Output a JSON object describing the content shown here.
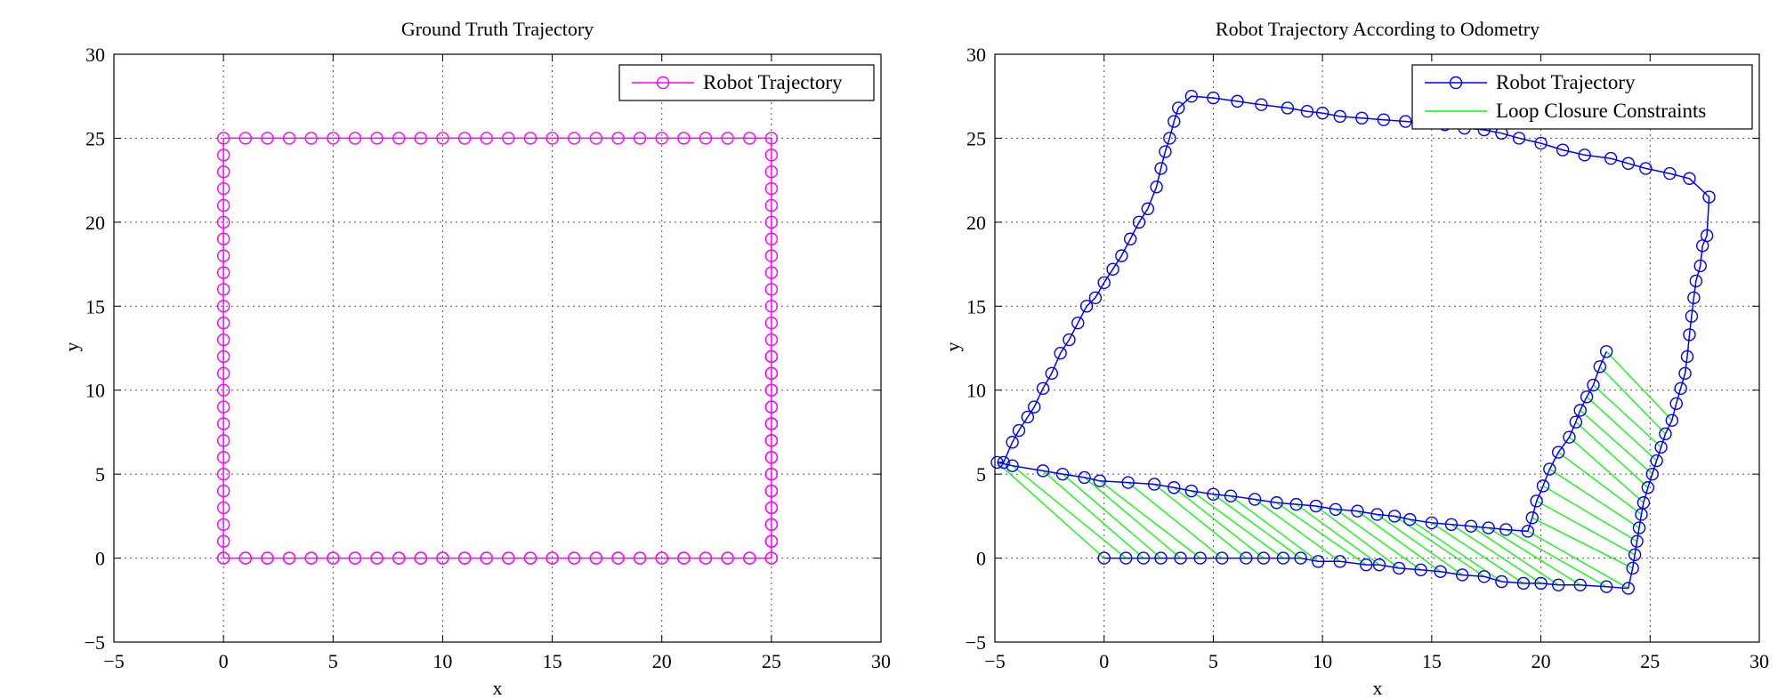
{
  "chart_data": [
    {
      "type": "line",
      "title": "Ground Truth Trajectory",
      "xlabel": "x",
      "ylabel": "y",
      "xlim": [
        -5,
        30
      ],
      "ylim": [
        -5,
        30
      ],
      "xticks": [
        -5,
        0,
        5,
        10,
        15,
        20,
        25,
        30
      ],
      "yticks": [
        -5,
        0,
        5,
        10,
        15,
        20,
        25,
        30
      ],
      "xtick_labels": [
        "−5",
        "0",
        "5",
        "10",
        "15",
        "20",
        "25",
        "30"
      ],
      "ytick_labels": [
        "−5",
        "0",
        "5",
        "10",
        "15",
        "20",
        "25",
        "30"
      ],
      "grid": true,
      "legend_position": "top-right",
      "series": [
        {
          "name": "Robot Trajectory",
          "color": "#ff00ff",
          "marker": "circle",
          "x": [
            0,
            1,
            2,
            3,
            4,
            5,
            6,
            7,
            8,
            9,
            10,
            11,
            12,
            13,
            14,
            15,
            16,
            17,
            18,
            19,
            20,
            21,
            22,
            23,
            24,
            25,
            25,
            25,
            25,
            25,
            25,
            25,
            25,
            25,
            25,
            25,
            25,
            25,
            25,
            25,
            25,
            25,
            25,
            25,
            25,
            25,
            25,
            25,
            25,
            25,
            25,
            24,
            23,
            22,
            21,
            20,
            19,
            18,
            17,
            16,
            15,
            14,
            13,
            12,
            11,
            10,
            9,
            8,
            7,
            6,
            5,
            4,
            3,
            2,
            1,
            0,
            0,
            0,
            0,
            0,
            0,
            0,
            0,
            0,
            0,
            0,
            0,
            0,
            0,
            0,
            0,
            0,
            0,
            0,
            0,
            0,
            0,
            0,
            0,
            0,
            0,
            1,
            2,
            3,
            4,
            5,
            6,
            7,
            8,
            9,
            10,
            11,
            12,
            13,
            14,
            15,
            16,
            17,
            18,
            19,
            20,
            21,
            22,
            23,
            24,
            25,
            25,
            25,
            25,
            25,
            25,
            25,
            25,
            25,
            25,
            25,
            25,
            25
          ],
          "y": [
            0,
            0,
            0,
            0,
            0,
            0,
            0,
            0,
            0,
            0,
            0,
            0,
            0,
            0,
            0,
            0,
            0,
            0,
            0,
            0,
            0,
            0,
            0,
            0,
            0,
            0,
            1,
            2,
            3,
            4,
            5,
            6,
            7,
            8,
            9,
            10,
            11,
            12,
            13,
            14,
            15,
            16,
            17,
            18,
            19,
            20,
            21,
            22,
            23,
            24,
            25,
            25,
            25,
            25,
            25,
            25,
            25,
            25,
            25,
            25,
            25,
            25,
            25,
            25,
            25,
            25,
            25,
            25,
            25,
            25,
            25,
            25,
            25,
            25,
            25,
            25,
            24,
            23,
            22,
            21,
            20,
            19,
            18,
            17,
            16,
            15,
            14,
            13,
            12,
            11,
            10,
            9,
            8,
            7,
            6,
            5,
            4,
            3,
            2,
            1,
            0,
            0,
            0,
            0,
            0,
            0,
            0,
            0,
            0,
            0,
            0,
            0,
            0,
            0,
            0,
            0,
            0,
            0,
            0,
            0,
            0,
            0,
            0,
            0,
            0,
            0,
            1,
            2,
            3,
            4,
            5,
            6,
            7,
            8,
            9,
            10,
            11,
            12
          ]
        }
      ]
    },
    {
      "type": "line",
      "title": "Robot Trajectory According to Odometry",
      "xlabel": "x",
      "ylabel": "y",
      "xlim": [
        -5,
        30
      ],
      "ylim": [
        -5,
        30
      ],
      "xticks": [
        -5,
        0,
        5,
        10,
        15,
        20,
        25,
        30
      ],
      "yticks": [
        -5,
        0,
        5,
        10,
        15,
        20,
        25,
        30
      ],
      "xtick_labels": [
        "−5",
        "0",
        "5",
        "10",
        "15",
        "20",
        "25",
        "30"
      ],
      "ytick_labels": [
        "−5",
        "0",
        "5",
        "10",
        "15",
        "20",
        "25",
        "30"
      ],
      "grid": true,
      "legend_position": "top-right",
      "series": [
        {
          "name": "Robot Trajectory",
          "color": "#0000ff",
          "marker": "circle",
          "x": [
            0,
            1,
            1.8,
            2.6,
            3.5,
            4.4,
            5.4,
            6.5,
            7.3,
            8.2,
            9.0,
            9.8,
            10.8,
            12.0,
            12.6,
            13.5,
            14.5,
            15.4,
            16.4,
            17.4,
            18.2,
            19.2,
            20.0,
            20.8,
            21.8,
            23.0,
            24.0,
            24.2,
            24.3,
            24.4,
            24.5,
            24.6,
            24.7,
            24.9,
            25.1,
            25.3,
            25.5,
            25.7,
            26.0,
            26.2,
            26.4,
            26.6,
            26.7,
            26.8,
            26.9,
            27.0,
            27.1,
            27.3,
            27.4,
            27.6,
            27.7,
            26.8,
            25.9,
            24.8,
            24.0,
            23.2,
            22.0,
            21.0,
            20.0,
            19.0,
            18.2,
            17.4,
            16.5,
            15.6,
            14.6,
            13.8,
            12.8,
            11.8,
            10.8,
            10.0,
            9.3,
            8.4,
            7.2,
            6.1,
            5.0,
            4.0,
            3.4,
            3.2,
            3.0,
            2.8,
            2.6,
            2.4,
            2.0,
            1.6,
            1.2,
            0.8,
            0.4,
            0,
            -0.4,
            -0.8,
            -1.2,
            -1.6,
            -2.0,
            -2.4,
            -2.8,
            -3.2,
            -3.5,
            -3.9,
            -4.2,
            -4.6,
            -4.9,
            -4.2,
            -2.8,
            -1.9,
            -0.9,
            -0.2,
            1.1,
            2.3,
            3.2,
            4.0,
            5.0,
            5.8,
            6.9,
            7.9,
            8.8,
            9.7,
            10.6,
            11.6,
            12.5,
            13.3,
            14.0,
            15.0,
            15.9,
            16.8,
            17.6,
            18.4,
            19.4,
            19.6,
            19.8,
            20.1,
            20.4,
            20.8,
            21.3,
            21.6,
            21.8,
            22.1,
            22.4,
            22.7,
            23.0
          ],
          "y": [
            0,
            0,
            0,
            0,
            0,
            0,
            0,
            0,
            0,
            0,
            0,
            -0.2,
            -0.2,
            -0.4,
            -0.4,
            -0.6,
            -0.7,
            -0.8,
            -1.0,
            -1.1,
            -1.4,
            -1.5,
            -1.5,
            -1.6,
            -1.6,
            -1.7,
            -1.8,
            -0.6,
            0.2,
            1.0,
            1.8,
            2.6,
            3.3,
            4.2,
            5.0,
            5.8,
            6.6,
            7.4,
            8.2,
            9.2,
            10.1,
            11.0,
            12.0,
            13.3,
            14.4,
            15.5,
            16.5,
            17.4,
            18.6,
            19.2,
            21.5,
            22.6,
            22.9,
            23.2,
            23.5,
            23.8,
            24.0,
            24.3,
            24.7,
            25.0,
            25.3,
            25.5,
            25.6,
            25.8,
            25.9,
            26.0,
            26.1,
            26.2,
            26.3,
            26.5,
            26.6,
            26.8,
            27.0,
            27.2,
            27.4,
            27.5,
            26.8,
            26.0,
            25.0,
            24.2,
            23.2,
            22.1,
            20.8,
            20.0,
            19.0,
            18.0,
            17.2,
            16.4,
            15.5,
            15.0,
            14.0,
            13.0,
            12.2,
            11.0,
            10.1,
            9.0,
            8.4,
            7.6,
            6.9,
            5.7,
            5.7,
            5.5,
            5.2,
            5.0,
            4.8,
            4.6,
            4.5,
            4.4,
            4.2,
            4.0,
            3.8,
            3.7,
            3.5,
            3.3,
            3.2,
            3.1,
            2.9,
            2.8,
            2.6,
            2.5,
            2.3,
            2.1,
            2.0,
            1.9,
            1.8,
            1.7,
            1.6,
            2.4,
            3.4,
            4.3,
            5.3,
            6.3,
            7.2,
            8.1,
            8.8,
            9.6,
            10.3,
            11.4,
            12.3
          ]
        },
        {
          "name": "Loop Closure Constraints",
          "color": "#00ff00"
        }
      ]
    }
  ]
}
